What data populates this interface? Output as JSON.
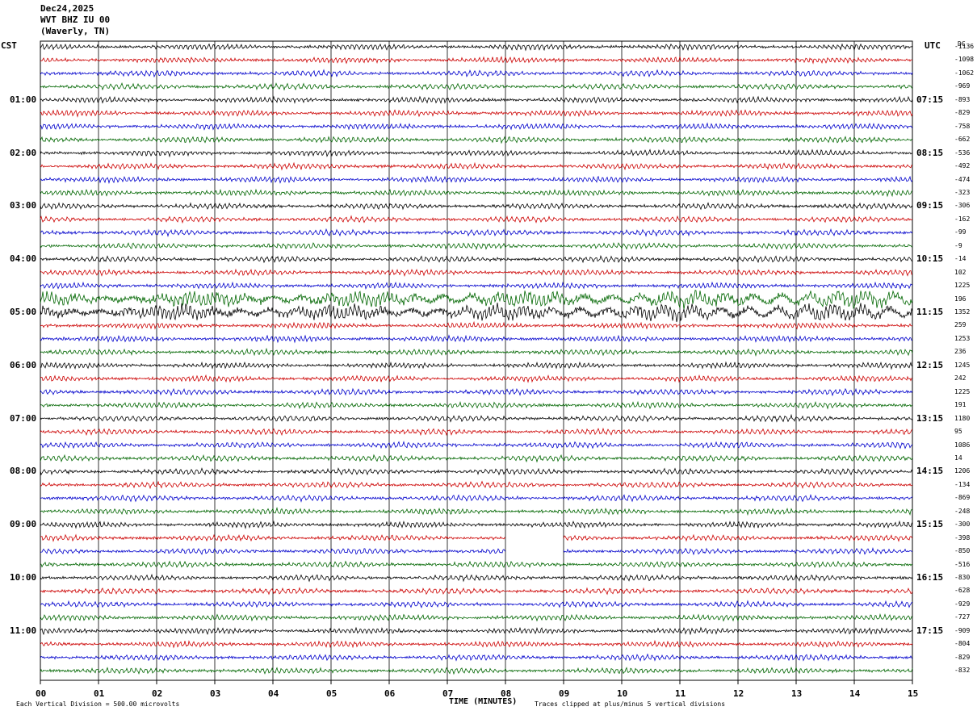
{
  "header": {
    "date": "Dec24,2025",
    "station": "WVT BHZ IU 00",
    "location": "(Waverly, TN)"
  },
  "left_zone": "CST",
  "right_zone": "UTC",
  "dc_header": "DC",
  "chart_data": {
    "type": "line",
    "title": "",
    "xlabel": "TIME (MINUTES)",
    "x_ticks": [
      "00",
      "01",
      "02",
      "03",
      "04",
      "05",
      "06",
      "07",
      "08",
      "09",
      "10",
      "11",
      "12",
      "13",
      "14",
      "15"
    ],
    "xlim": [
      0,
      15
    ],
    "rows_per_hour": 4,
    "row_colors": [
      "#000000",
      "#cc0000",
      "#0000cc",
      "#006600"
    ],
    "left_hour_labels": [
      "01:00",
      "02:00",
      "03:00",
      "04:00",
      "05:00",
      "06:00",
      "07:00",
      "08:00",
      "09:00",
      "10:00",
      "11:00"
    ],
    "right_hour_labels": [
      "07:15",
      "08:15",
      "09:15",
      "10:15",
      "11:15",
      "12:15",
      "13:15",
      "14:15",
      "15:15",
      "16:15",
      "17:15"
    ],
    "dc_offsets": [
      "-1136",
      "-1098",
      "-1062",
      "-969",
      "-893",
      "-829",
      "-758",
      "-662",
      "-536",
      "-492",
      "-474",
      "-323",
      "-306",
      "-162",
      "-99",
      "-9",
      "-14",
      "102",
      "1225",
      "196",
      "1352",
      "259",
      "1253",
      "236",
      "1245",
      "242",
      "1225",
      "191",
      "1180",
      "95",
      "1086",
      "14",
      "1206",
      "-134",
      "-869",
      "-248",
      "-300",
      "-398",
      "-850",
      "-516",
      "-830",
      "-628",
      "-929",
      "-727",
      "-909",
      "-804",
      "-829",
      "-832"
    ],
    "gap_minutes": [
      [
        8.0,
        9.0
      ]
    ],
    "gap_rows": [
      37,
      38
    ]
  },
  "footer": {
    "scale": "Each Vertical Division =  500.00 microvolts",
    "clip_note": "Traces clipped at plus/minus 5 vertical divisions"
  }
}
